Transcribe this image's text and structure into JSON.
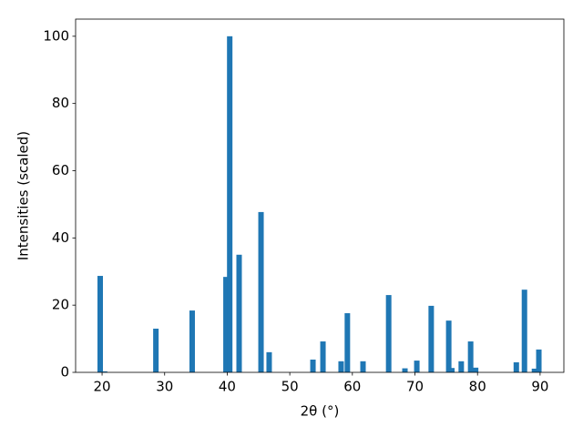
{
  "chart_data": {
    "type": "bar",
    "xlabel": "2θ (°)",
    "ylabel": "Intensities (scaled)",
    "color": "#1f77b4",
    "x": [
      19.7,
      20.4,
      28.6,
      34.4,
      39.8,
      40.4,
      41.9,
      45.4,
      46.7,
      53.7,
      55.3,
      58.2,
      59.2,
      61.7,
      65.8,
      68.4,
      70.3,
      72.6,
      75.4,
      75.9,
      77.4,
      78.9,
      79.7,
      86.2,
      87.5,
      89.1,
      89.8
    ],
    "values": [
      28.7,
      0.3,
      13.0,
      18.4,
      28.4,
      100,
      35.0,
      47.7,
      6.0,
      3.8,
      9.2,
      3.3,
      17.6,
      3.3,
      23.0,
      1.2,
      3.5,
      19.8,
      15.4,
      1.3,
      3.3,
      9.2,
      1.4,
      3.0,
      24.6,
      1.1,
      6.8
    ],
    "xlim": [
      15.77,
      93.8
    ],
    "ylim": [
      0,
      105.1
    ],
    "xticks": [
      20,
      30,
      40,
      50,
      60,
      70,
      80,
      90
    ],
    "yticks": [
      0,
      20,
      40,
      60,
      80,
      100
    ]
  }
}
